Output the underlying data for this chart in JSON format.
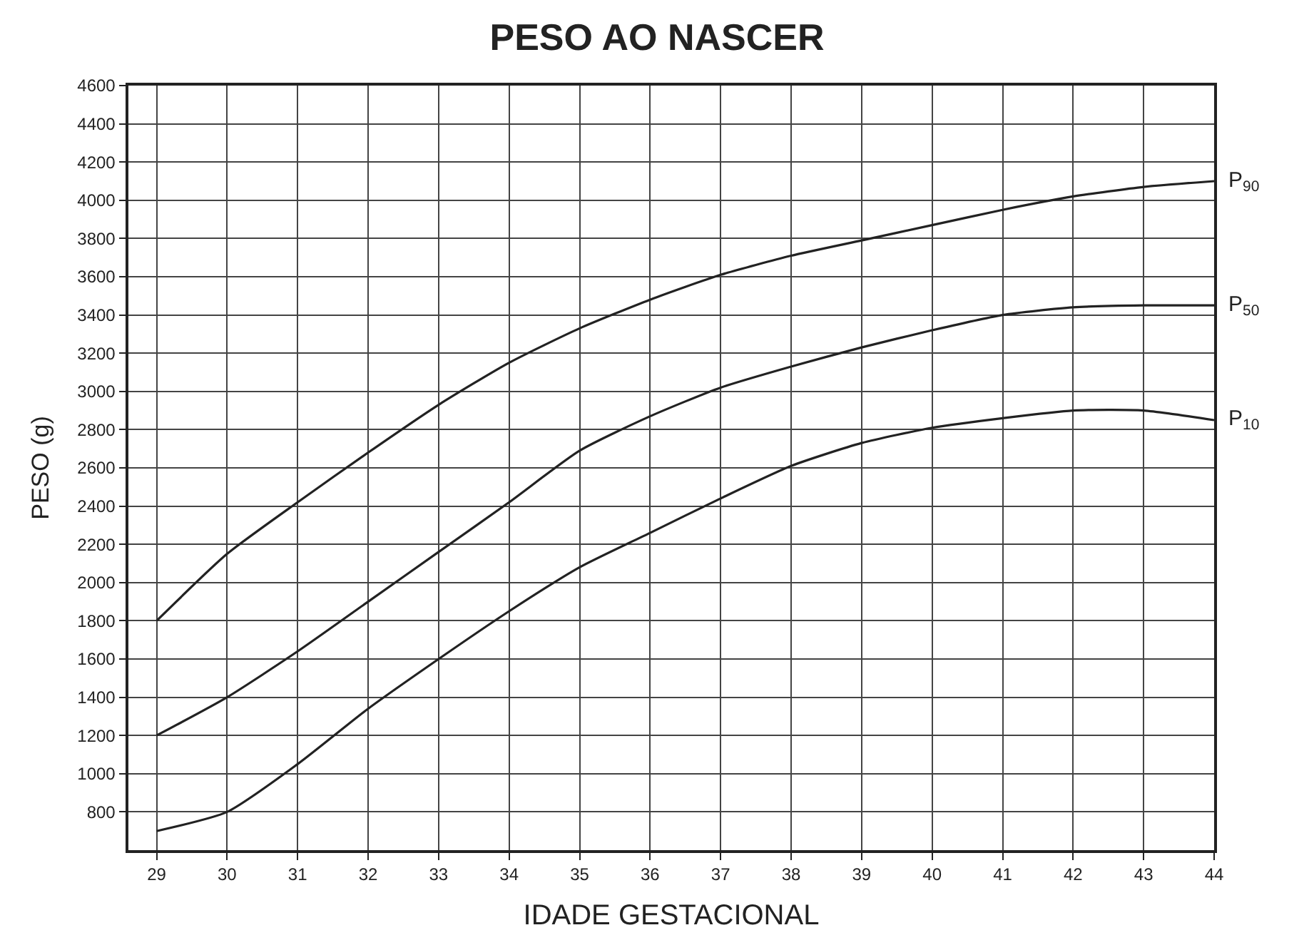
{
  "chart_data": {
    "type": "line",
    "title": "PESO AO NASCER",
    "xlabel": "IDADE GESTACIONAL",
    "ylabel": "PESO (g)",
    "x": [
      29,
      30,
      31,
      32,
      33,
      34,
      35,
      36,
      37,
      38,
      39,
      40,
      41,
      42,
      43,
      44
    ],
    "series": [
      {
        "name": "P$_{90}$",
        "color": "#222222",
        "values": [
          1800,
          2150,
          2420,
          2680,
          2930,
          3150,
          3330,
          3480,
          3610,
          3710,
          3790,
          3870,
          3950,
          4020,
          4070,
          4100
        ]
      },
      {
        "name": "P$_{50}$",
        "color": "#222222",
        "values": [
          1200,
          1400,
          1640,
          1900,
          2160,
          2420,
          2690,
          2870,
          3020,
          3130,
          3230,
          3320,
          3400,
          3440,
          3450,
          3450
        ]
      },
      {
        "name": "P$_{10}$",
        "color": "#222222",
        "values": [
          700,
          800,
          1050,
          1340,
          1600,
          1850,
          2080,
          2260,
          2440,
          2610,
          2730,
          2810,
          2860,
          2900,
          2900,
          2850
        ]
      }
    ],
    "xlim": [
      28.6,
      44
    ],
    "xticks": [
      29,
      30,
      31,
      32,
      33,
      34,
      35,
      36,
      37,
      38,
      39,
      40,
      41,
      42,
      43,
      44
    ],
    "ylim": [
      600,
      4600
    ],
    "yticks": [
      800,
      1000,
      1200,
      1400,
      1600,
      1800,
      2000,
      2200,
      2400,
      2600,
      2800,
      3000,
      3200,
      3400,
      3600,
      3800,
      4000,
      4200,
      4400,
      4600
    ],
    "grid": true,
    "legend": false,
    "marker": "none",
    "line_style": "solid"
  }
}
